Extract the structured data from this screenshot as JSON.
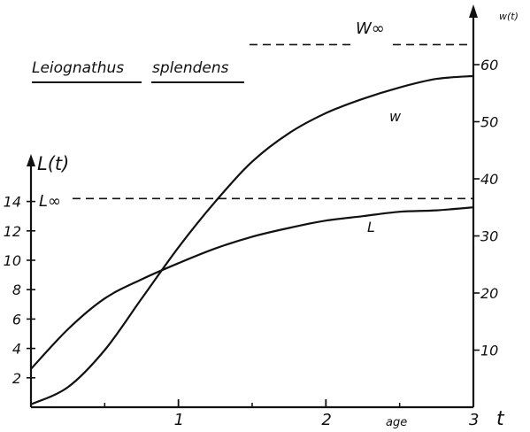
{
  "chart_data": {
    "type": "line",
    "title": [
      "Leiognathus",
      "splendens"
    ],
    "xlabel": "age",
    "x_axis_symbol": "t",
    "y_left_label": "L(t)",
    "y_right_label": "w(t)",
    "xlim": [
      0,
      3
    ],
    "y_left_lim": [
      0,
      16
    ],
    "y_right_lim": [
      0,
      65
    ],
    "x_ticks": [
      "1",
      "2",
      "3"
    ],
    "y_left_ticks": [
      "2",
      "4",
      "6",
      "8",
      "10",
      "12",
      "14"
    ],
    "y_right_ticks": [
      "10",
      "20",
      "30",
      "40",
      "50",
      "60"
    ],
    "asymptotes": [
      {
        "label": "L∞",
        "value": 14.2,
        "axis": "left"
      },
      {
        "label": "W∞",
        "value": 63.5,
        "axis": "right"
      }
    ],
    "series": [
      {
        "name": "L",
        "axis": "left",
        "x": [
          0,
          0.25,
          0.5,
          0.75,
          1.0,
          1.25,
          1.5,
          1.75,
          2.0,
          2.25,
          2.5,
          2.75,
          3.0
        ],
        "y": [
          2.6,
          5.3,
          7.4,
          8.7,
          9.8,
          10.8,
          11.6,
          12.2,
          12.7,
          13.0,
          13.3,
          13.4,
          13.6
        ]
      },
      {
        "name": "w",
        "axis": "right",
        "x": [
          0,
          0.25,
          0.5,
          0.75,
          1.0,
          1.25,
          1.5,
          1.75,
          2.0,
          2.25,
          2.5,
          2.75,
          3.0
        ],
        "y": [
          0.5,
          3.5,
          10,
          19,
          28,
          36,
          43,
          48,
          51.5,
          54,
          56,
          57.5,
          58
        ]
      }
    ]
  }
}
